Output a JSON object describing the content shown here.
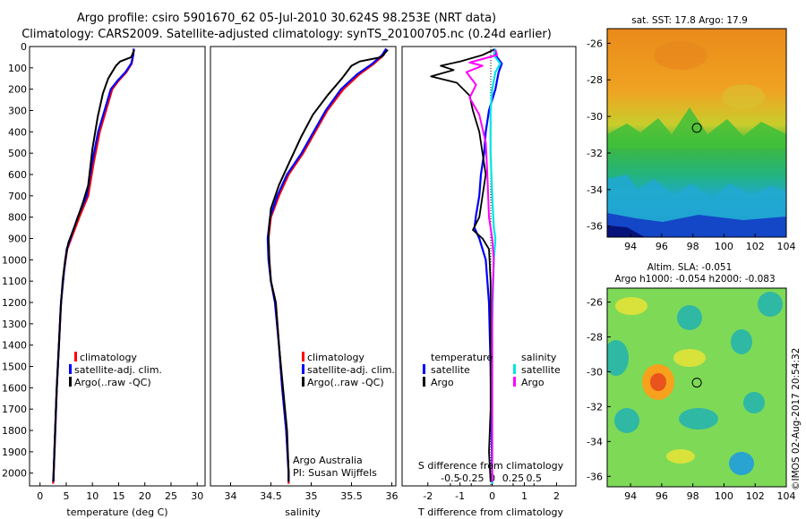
{
  "header": {
    "title_line1": "Argo profile: csiro 5901670_62 05-Jul-2010 30.624S 98.253E (NRT data)",
    "title_line2": "Climatology: CARS2009. Satellite-adjusted climatology: synTS_20100705.nc (0.24d earlier)"
  },
  "colors": {
    "clim": "#ff0000",
    "sat": "#0000ff",
    "argo": "#000000",
    "sat_s": "#00e5e5",
    "argo_s": "#ff00ff"
  },
  "chart_data": [
    {
      "id": "temperature",
      "type": "line",
      "xlabel": "temperature (deg C)",
      "xlim": [
        -2,
        31.5
      ],
      "ylim": [
        2060,
        0
      ],
      "xticks": [
        0,
        5,
        10,
        15,
        20,
        25,
        30
      ],
      "depth_ticks": [
        0,
        100,
        200,
        300,
        400,
        500,
        600,
        700,
        800,
        900,
        1000,
        1100,
        1200,
        1300,
        1400,
        1500,
        1600,
        1700,
        1800,
        1900,
        2000
      ],
      "legend": [
        "climatology",
        "satellite-adj. clim.",
        "Argo(..raw -QC)"
      ],
      "series": [
        {
          "name": "climatology",
          "points": [
            [
              17.9,
              10
            ],
            [
              17.8,
              40
            ],
            [
              17.5,
              80
            ],
            [
              16.5,
              120
            ],
            [
              15,
              160
            ],
            [
              13.8,
              200
            ],
            [
              12.6,
              300
            ],
            [
              11.4,
              400
            ],
            [
              10.2,
              550
            ],
            [
              9.2,
              700
            ],
            [
              7.5,
              800
            ],
            [
              5.2,
              950
            ],
            [
              4.6,
              1050
            ],
            [
              4,
              1200
            ],
            [
              3.6,
              1400
            ],
            [
              3.2,
              1600
            ],
            [
              2.9,
              1800
            ],
            [
              2.6,
              2000
            ],
            [
              2.5,
              2050
            ]
          ]
        },
        {
          "name": "satellite-adj. clim.",
          "points": [
            [
              17.9,
              10
            ],
            [
              17.8,
              40
            ],
            [
              17.4,
              80
            ],
            [
              16.3,
              120
            ],
            [
              14.8,
              160
            ],
            [
              13.5,
              200
            ],
            [
              12.3,
              300
            ],
            [
              11.1,
              400
            ],
            [
              9.9,
              550
            ],
            [
              8.9,
              700
            ],
            [
              7.2,
              800
            ],
            [
              5.1,
              950
            ],
            [
              4.6,
              1050
            ],
            [
              4,
              1200
            ],
            [
              3.6,
              1400
            ],
            [
              3.2,
              1600
            ],
            [
              2.9,
              1800
            ],
            [
              2.6,
              2000
            ],
            [
              2.5,
              2040
            ]
          ]
        },
        {
          "name": "Argo(..raw -QC)",
          "points": [
            [
              18,
              15
            ],
            [
              17.4,
              50
            ],
            [
              15.3,
              70
            ],
            [
              14.5,
              90
            ],
            [
              14,
              110
            ],
            [
              13,
              150
            ],
            [
              12,
              220
            ],
            [
              11,
              330
            ],
            [
              10,
              480
            ],
            [
              9.2,
              650
            ],
            [
              8.2,
              730
            ],
            [
              6.8,
              830
            ],
            [
              5.4,
              920
            ],
            [
              4.8,
              1000
            ],
            [
              4.3,
              1100
            ],
            [
              3.9,
              1250
            ],
            [
              3.5,
              1450
            ],
            [
              3.1,
              1650
            ],
            [
              2.8,
              1850
            ],
            [
              2.6,
              2000
            ],
            [
              2.6,
              2040
            ]
          ]
        }
      ]
    },
    {
      "id": "salinity",
      "type": "line",
      "xlabel": "salinity",
      "xlim": [
        33.75,
        36.05
      ],
      "ylim": [
        2060,
        0
      ],
      "xticks": [
        34,
        34.5,
        35,
        35.5,
        36
      ],
      "xtick_labels": [
        "34",
        "34.5",
        "35",
        "35.5",
        "36"
      ],
      "legend": [
        "climatology",
        "satellite-adj. clim.",
        "Argo(..raw -QC)"
      ],
      "annotation": [
        "Argo Australia",
        "PI: Susan Wijffels"
      ],
      "series": [
        {
          "name": "climatology",
          "points": [
            [
              35.93,
              10
            ],
            [
              35.9,
              40
            ],
            [
              35.78,
              80
            ],
            [
              35.6,
              130
            ],
            [
              35.4,
              200
            ],
            [
              35.2,
              300
            ],
            [
              35.05,
              400
            ],
            [
              34.9,
              500
            ],
            [
              34.72,
              600
            ],
            [
              34.6,
              700
            ],
            [
              34.5,
              800
            ],
            [
              34.47,
              900
            ],
            [
              34.48,
              1000
            ],
            [
              34.5,
              1100
            ],
            [
              34.56,
              1200
            ],
            [
              34.6,
              1400
            ],
            [
              34.64,
              1600
            ],
            [
              34.69,
              1800
            ],
            [
              34.72,
              2000
            ],
            [
              34.72,
              2050
            ]
          ]
        },
        {
          "name": "satellite-adj. clim.",
          "points": [
            [
              35.93,
              10
            ],
            [
              35.88,
              40
            ],
            [
              35.76,
              80
            ],
            [
              35.57,
              130
            ],
            [
              35.37,
              200
            ],
            [
              35.18,
              300
            ],
            [
              35.03,
              400
            ],
            [
              34.88,
              500
            ],
            [
              34.7,
              600
            ],
            [
              34.58,
              700
            ],
            [
              34.49,
              800
            ],
            [
              34.46,
              900
            ],
            [
              34.47,
              1000
            ],
            [
              34.5,
              1100
            ],
            [
              34.55,
              1200
            ],
            [
              34.6,
              1400
            ],
            [
              34.64,
              1600
            ],
            [
              34.69,
              1800
            ],
            [
              34.72,
              2000
            ],
            [
              34.72,
              2040
            ]
          ]
        },
        {
          "name": "Argo(..raw -QC)",
          "points": [
            [
              35.95,
              15
            ],
            [
              35.87,
              50
            ],
            [
              35.6,
              70
            ],
            [
              35.5,
              90
            ],
            [
              35.38,
              150
            ],
            [
              35.2,
              230
            ],
            [
              35.02,
              320
            ],
            [
              34.88,
              420
            ],
            [
              34.72,
              550
            ],
            [
              34.6,
              650
            ],
            [
              34.5,
              760
            ],
            [
              34.47,
              880
            ],
            [
              34.48,
              1000
            ],
            [
              34.5,
              1100
            ],
            [
              34.56,
              1200
            ],
            [
              34.6,
              1400
            ],
            [
              34.65,
              1600
            ],
            [
              34.7,
              1800
            ],
            [
              34.72,
              2000
            ],
            [
              34.72,
              2040
            ]
          ]
        }
      ]
    },
    {
      "id": "difference",
      "type": "line",
      "xlabel": "T difference from climatology",
      "xlabel_top": "S difference from climatology",
      "xlim": [
        -2.8,
        2.6
      ],
      "ylim": [
        2060,
        0
      ],
      "xticks": [
        -2,
        -1,
        0,
        1,
        2
      ],
      "xtick_labels": [
        "-2",
        "-1",
        "0",
        "1",
        "2"
      ],
      "xticks_top": [
        -1.3,
        -0.65,
        0,
        0.65,
        1.3
      ],
      "xtick_labels_top": [
        "-0.5",
        "-0.25",
        "0",
        "0.25",
        "0.5"
      ],
      "legend_temperature": [
        "temperature",
        "satellite",
        "Argo"
      ],
      "legend_salinity": [
        "salinity",
        "satellite",
        "Argo"
      ],
      "series": [
        {
          "name": "T satellite",
          "points": [
            [
              0.05,
              10
            ],
            [
              0.1,
              40
            ],
            [
              0.3,
              80
            ],
            [
              0.2,
              120
            ],
            [
              0.1,
              200
            ],
            [
              -0.1,
              300
            ],
            [
              -0.2,
              400
            ],
            [
              -0.25,
              500
            ],
            [
              -0.35,
              600
            ],
            [
              -0.4,
              700
            ],
            [
              -0.5,
              790
            ],
            [
              -0.55,
              850
            ],
            [
              -0.4,
              900
            ],
            [
              -0.2,
              1000
            ],
            [
              -0.1,
              1200
            ],
            [
              -0.05,
              1500
            ],
            [
              -0.02,
              1800
            ],
            [
              0,
              2050
            ]
          ]
        },
        {
          "name": "T Argo",
          "points": [
            [
              0.05,
              15
            ],
            [
              -0.3,
              40
            ],
            [
              -1,
              70
            ],
            [
              -1.6,
              90
            ],
            [
              -1.2,
              110
            ],
            [
              -1.9,
              140
            ],
            [
              -1.1,
              170
            ],
            [
              -0.7,
              230
            ],
            [
              -0.6,
              300
            ],
            [
              -0.4,
              400
            ],
            [
              -0.3,
              500
            ],
            [
              -0.2,
              600
            ],
            [
              -0.3,
              700
            ],
            [
              -0.4,
              800
            ],
            [
              -0.6,
              860
            ],
            [
              -0.3,
              900
            ],
            [
              -0.1,
              950
            ],
            [
              -0.05,
              1100
            ],
            [
              -0.05,
              1400
            ],
            [
              -0.05,
              1700
            ],
            [
              -0.1,
              1900
            ],
            [
              -0.05,
              2040
            ]
          ]
        },
        {
          "name": "S satellite",
          "points": [
            [
              0.1,
              10
            ],
            [
              0.05,
              40
            ],
            [
              0.25,
              80
            ],
            [
              0.1,
              120
            ],
            [
              0,
              200
            ],
            [
              -0.05,
              300
            ],
            [
              -0.05,
              500
            ],
            [
              0,
              700
            ],
            [
              0.05,
              850
            ],
            [
              0.1,
              900
            ],
            [
              0.05,
              1000
            ],
            [
              0,
              1300
            ],
            [
              0,
              1600
            ],
            [
              0,
              2050
            ]
          ]
        },
        {
          "name": "S Argo",
          "points": [
            [
              0.1,
              15
            ],
            [
              0.15,
              40
            ],
            [
              -0.7,
              75
            ],
            [
              -0.3,
              90
            ],
            [
              -0.8,
              120
            ],
            [
              -0.5,
              180
            ],
            [
              -0.7,
              240
            ],
            [
              -0.4,
              320
            ],
            [
              -0.2,
              450
            ],
            [
              -0.15,
              600
            ],
            [
              -0.1,
              800
            ],
            [
              0,
              900
            ],
            [
              0.05,
              1000
            ],
            [
              0,
              1200
            ],
            [
              0,
              1600
            ],
            [
              0,
              2040
            ]
          ]
        }
      ]
    },
    {
      "id": "sst_map",
      "type": "heatmap",
      "title": "sat. SST: 17.8 Argo: 17.9",
      "xticks": [
        94,
        96,
        98,
        100,
        102,
        104
      ],
      "xtick_labels": [
        "94",
        "96",
        "98",
        "100",
        "102",
        "104"
      ],
      "yticks": [
        -26,
        -28,
        -30,
        -32,
        -34,
        -36
      ],
      "yticks_labels": [
        "-26",
        "-28",
        "-30",
        "-32",
        "-34",
        "-36"
      ],
      "xlim": [
        92.5,
        104
      ],
      "ylim": [
        -36.6,
        -25.2
      ],
      "marker": [
        98.253,
        -30.624
      ]
    },
    {
      "id": "sla_map",
      "type": "heatmap",
      "title_line1": "Altim. SLA: -0.051",
      "title_line2": "Argo h1000: -0.054 h2000: -0.083",
      "xticks": [
        94,
        96,
        98,
        100,
        102,
        104
      ],
      "xtick_labels": [
        "94",
        "96",
        "98",
        "100",
        "102",
        "104"
      ],
      "yticks": [
        -26,
        -28,
        -30,
        -32,
        -34,
        -36
      ],
      "yticks_labels": [
        "-26",
        "-28",
        "-30",
        "-32",
        "-34",
        "-36"
      ],
      "xlim": [
        92.5,
        104
      ],
      "ylim": [
        -36.6,
        -25.2
      ],
      "marker": [
        98.253,
        -30.624
      ]
    }
  ],
  "footer": {
    "credit": "©IMOS 02-Aug-2017 20:54:32"
  }
}
